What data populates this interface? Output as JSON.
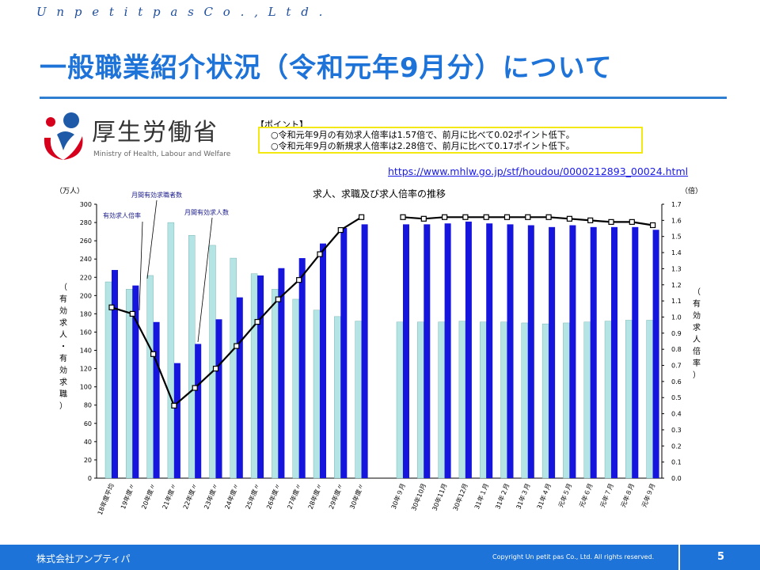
{
  "header": {
    "brand": "U n  p e t i t  p a s  C o . ,  L t d .",
    "title": "一般職業紹介状況（令和元年9月分）について"
  },
  "logo": {
    "name": "厚生労働省",
    "english": "Ministry of Health, Labour and Welfare"
  },
  "points": {
    "heading": "【ポイント】",
    "line1": "○令和元年9月の有効求人倍率は1.57倍で、前月に比べて0.02ポイント低下。",
    "line2": "○令和元年9月の新規求人倍率は2.28倍で、前月に比べて0.17ポイント低下。"
  },
  "source_url": "https://www.mhlw.go.jp/stf/houdou/0000212893_00024.html",
  "footer": {
    "company": "株式会社アンプティパ",
    "copyright": "Copyright  Un petit pas Co., Ltd.  All rights reserved.",
    "page": "5"
  },
  "chart_data": {
    "type": "bar",
    "title": "求人、求職及び求人倍率の推移",
    "left_unit": "（万人）",
    "right_unit": "（倍）",
    "left_axis_label": "（有効求人・有効求職）",
    "right_axis_label": "（有効求人倍率）",
    "left_ylim": [
      0,
      300
    ],
    "right_ylim": [
      0.0,
      1.7
    ],
    "left_ticks": [
      "0",
      "20",
      "40",
      "60",
      "80",
      "100",
      "120",
      "140",
      "160",
      "180",
      "200",
      "220",
      "240",
      "260",
      "280",
      "300"
    ],
    "right_ticks": [
      "0.0",
      "0.1",
      "0.2",
      "0.3",
      "0.4",
      "0.5",
      "0.6",
      "0.7",
      "0.8",
      "0.9",
      "1.0",
      "1.1",
      "1.2",
      "1.3",
      "1.4",
      "1.5",
      "1.6",
      "1.7"
    ],
    "annotations": [
      "月間有効求職者数",
      "有効求人倍率",
      "月間有効求人数"
    ],
    "categories": [
      "18年度平均",
      "19年度〃",
      "20年度〃",
      "21年度〃",
      "22年度〃",
      "23年度〃",
      "24年度〃",
      "25年度〃",
      "26年度〃",
      "27年度〃",
      "28年度〃",
      "29年度〃",
      "30年度〃",
      "30年９月",
      "30年10月",
      "30年11月",
      "30年12月",
      "31年１月",
      "31年２月",
      "31年３月",
      "31年４月",
      "元年５月",
      "元年６月",
      "元年７月",
      "元年８月",
      "元年９月"
    ],
    "series": [
      {
        "name": "月間有効求職者数",
        "color": "#b4e4e4",
        "values": [
          215,
          207,
          222,
          280,
          266,
          255,
          241,
          224,
          207,
          196,
          184,
          177,
          172,
          171,
          171,
          171,
          172,
          171,
          171,
          170,
          169,
          170,
          171,
          172,
          173,
          173
        ]
      },
      {
        "name": "月間有効求人数",
        "color": "#1515dd",
        "values": [
          228,
          211,
          171,
          126,
          147,
          174,
          198,
          222,
          230,
          241,
          257,
          274,
          278,
          278,
          278,
          279,
          281,
          279,
          278,
          277,
          275,
          277,
          275,
          275,
          275,
          272
        ]
      },
      {
        "name": "有効求人倍率",
        "color": "#000000",
        "values": [
          1.06,
          1.02,
          0.77,
          0.45,
          0.56,
          0.68,
          0.82,
          0.97,
          1.11,
          1.23,
          1.39,
          1.54,
          1.62,
          1.62,
          1.61,
          1.62,
          1.62,
          1.62,
          1.62,
          1.62,
          1.62,
          1.61,
          1.6,
          1.59,
          1.59,
          1.57
        ]
      }
    ],
    "grid": false
  }
}
